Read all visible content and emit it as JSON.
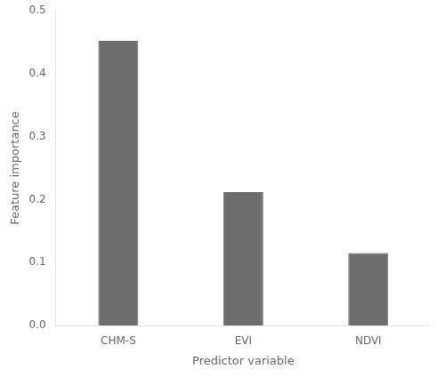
{
  "chart_data": {
    "type": "bar",
    "categories": [
      "CHM-S",
      "EVI",
      "NDVI"
    ],
    "values": [
      0.452,
      0.212,
      0.115
    ],
    "color": "#6d6d6d",
    "x_label": "Predictor variable",
    "y_label": "Feature importance",
    "ylim": [
      0.0,
      0.5
    ],
    "yticks": [
      {
        "value": 0,
        "label": "0.0"
      },
      0.1,
      0.2,
      0.3,
      0.4,
      0.5
    ],
    "grid": false
  }
}
